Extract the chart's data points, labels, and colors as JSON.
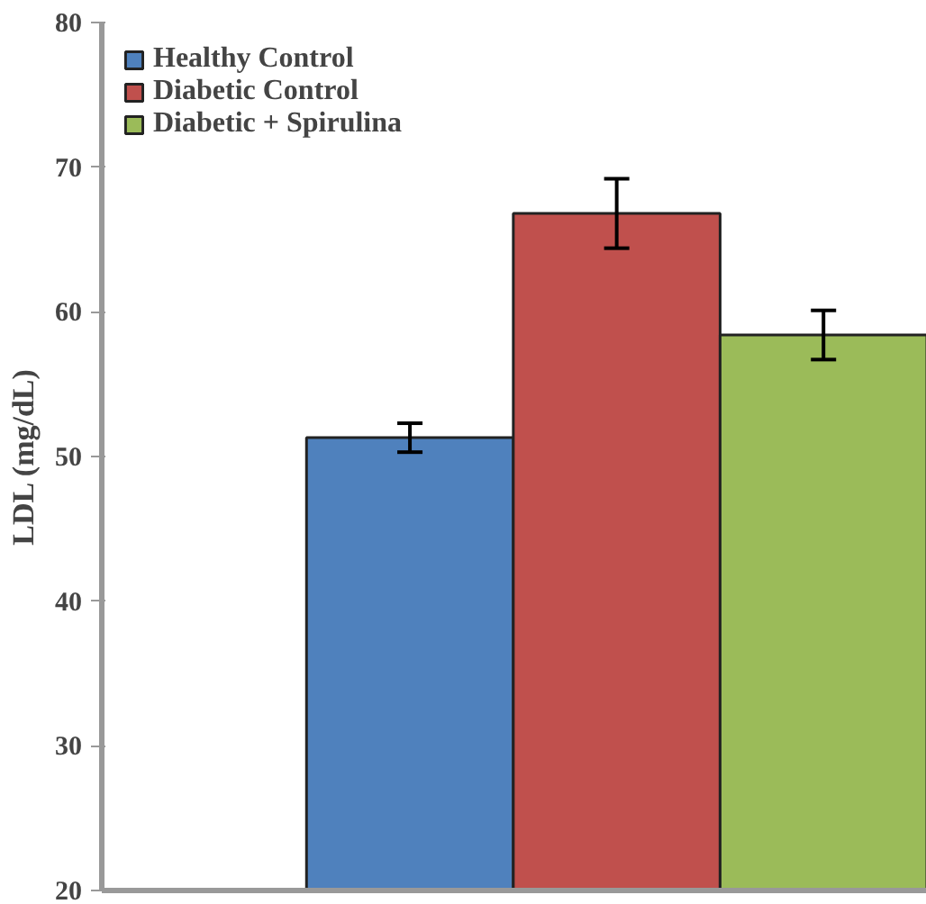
{
  "chart_data": {
    "type": "bar",
    "ylabel": "LDL (mg/dL)",
    "categories": [
      null
    ],
    "series": [
      {
        "name": "Healthy Control",
        "color": "#4f81bd",
        "values": [
          51.3
        ],
        "errors": [
          1.0
        ]
      },
      {
        "name": "Diabetic Control",
        "color": "#c0504d",
        "values": [
          66.8
        ],
        "errors": [
          2.4
        ]
      },
      {
        "name": "Diabetic + Spirulina",
        "color": "#9bbb59",
        "values": [
          58.4
        ],
        "errors": [
          1.7
        ]
      }
    ],
    "ylim": [
      20,
      80
    ],
    "yticks": [
      20,
      30,
      40,
      50,
      60,
      70,
      80
    ],
    "grid": false,
    "legend": "top left"
  }
}
